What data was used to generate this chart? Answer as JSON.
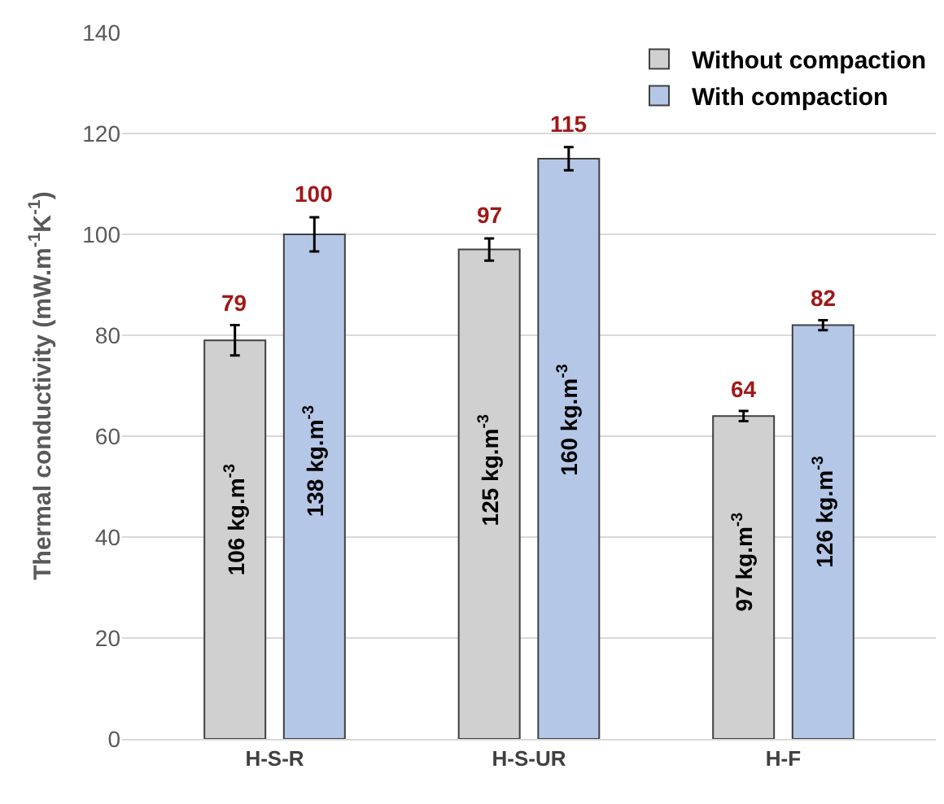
{
  "chart_data": {
    "type": "bar",
    "ylabel": "Thermal conductivity (mW.m$^{-1}$K$^{-1}$)",
    "categories": [
      "H-S-R",
      "H-S-UR",
      "H-F"
    ],
    "series": [
      {
        "name": "Without compaction",
        "color": "#d0d0d0",
        "values": [
          79,
          97,
          64
        ],
        "errors": [
          3,
          2.2,
          1
        ]
      },
      {
        "name": "With compaction",
        "color": "#b4c7e7",
        "values": [
          100,
          115,
          82
        ],
        "errors": [
          3.4,
          2.3,
          1
        ]
      }
    ],
    "ylim": [
      0,
      140
    ],
    "yticks": [
      0,
      20,
      40,
      60,
      80,
      100,
      120,
      140
    ],
    "grid": "y",
    "legend": "top right",
    "data_labels": true,
    "annotations": [
      "106 kg.m$^{-3}$",
      "138 kg.m$^{-3}$",
      "125 kg.m$^{-3}$",
      "160 kg.m$^{-3}$",
      "97 kg.m$^{-3}$",
      "126 kg.m$^{-3}$"
    ]
  }
}
